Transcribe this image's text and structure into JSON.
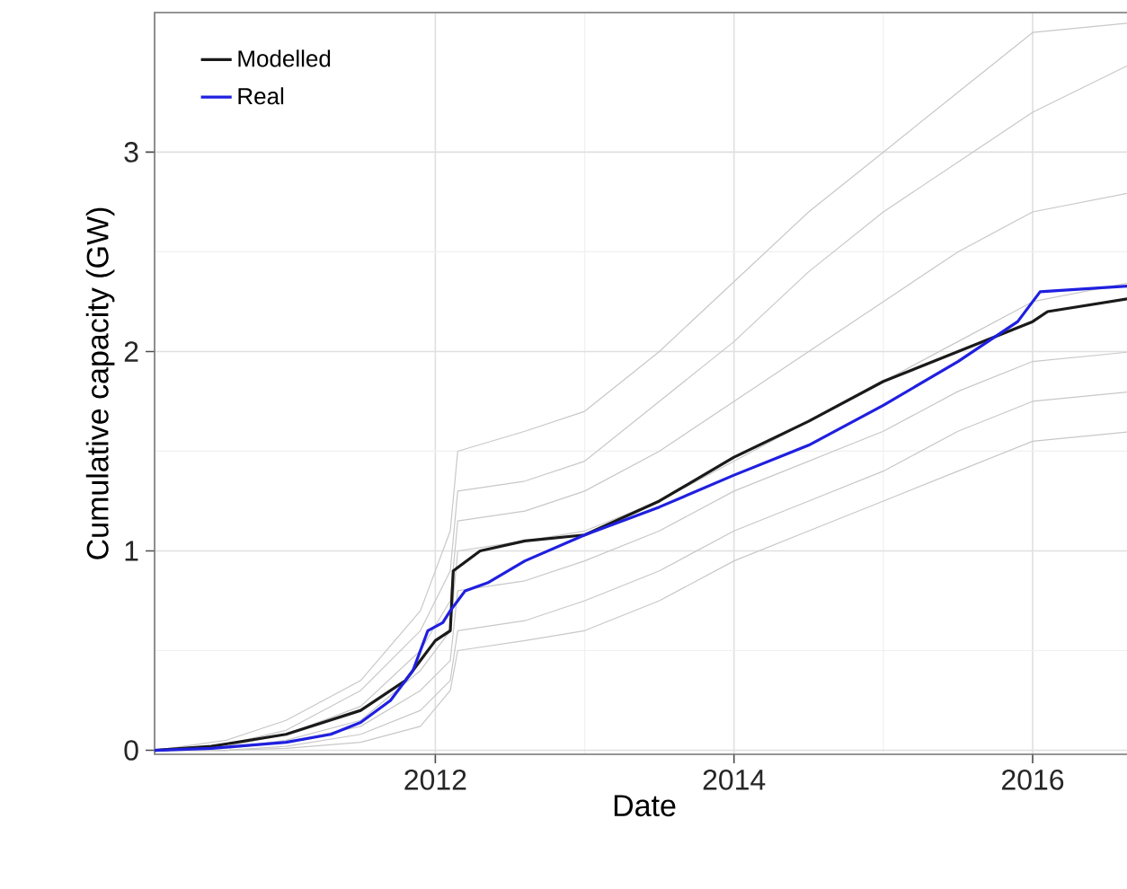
{
  "chart_data": {
    "type": "line",
    "xlabel": "Date",
    "ylabel": "Cumulative capacity (GW)",
    "xlim": [
      2010.12,
      2016.68
    ],
    "ylim": [
      -0.02,
      3.7
    ],
    "xticks": [
      2012,
      2014,
      2016
    ],
    "yticks": [
      0,
      1,
      2,
      3
    ],
    "grid": true,
    "legend": "top left",
    "line_style": "solid",
    "marker": "none",
    "series": [
      {
        "color": "#c8c8c8",
        "x": [
          2010.12,
          2010.6,
          2011.0,
          2011.5,
          2011.9,
          2012.1,
          2012.15,
          2012.6,
          2013.0,
          2013.5,
          2014.0,
          2014.5,
          2015.0,
          2015.5,
          2016.0,
          2016.68
        ],
        "values": [
          0,
          0.05,
          0.15,
          0.35,
          0.7,
          1.1,
          1.5,
          1.6,
          1.7,
          2.0,
          2.35,
          2.7,
          3.0,
          3.3,
          3.6,
          3.65
        ]
      },
      {
        "color": "#c8c8c8",
        "x": [
          2010.12,
          2010.6,
          2011.0,
          2011.5,
          2011.9,
          2012.1,
          2012.15,
          2012.6,
          2013.0,
          2013.5,
          2014.0,
          2014.5,
          2015.0,
          2015.5,
          2016.0,
          2016.68
        ],
        "values": [
          0,
          0.03,
          0.1,
          0.3,
          0.6,
          0.9,
          1.3,
          1.35,
          1.45,
          1.75,
          2.05,
          2.4,
          2.7,
          2.95,
          3.2,
          3.45
        ]
      },
      {
        "color": "#c8c8c8",
        "x": [
          2010.12,
          2010.6,
          2011.0,
          2011.5,
          2011.9,
          2012.1,
          2012.15,
          2012.6,
          2013.0,
          2013.5,
          2014.0,
          2014.5,
          2015.0,
          2015.5,
          2016.0,
          2016.68
        ],
        "values": [
          0,
          0.02,
          0.08,
          0.22,
          0.5,
          0.75,
          1.15,
          1.2,
          1.3,
          1.5,
          1.75,
          2.0,
          2.25,
          2.5,
          2.7,
          2.8
        ]
      },
      {
        "color": "#c8c8c8",
        "x": [
          2010.12,
          2010.6,
          2011.0,
          2011.5,
          2011.9,
          2012.1,
          2012.15,
          2012.6,
          2013.0,
          2013.5,
          2014.0,
          2014.5,
          2015.0,
          2015.5,
          2016.0,
          2016.68
        ],
        "values": [
          0,
          0.01,
          0.05,
          0.15,
          0.4,
          0.6,
          1.0,
          1.05,
          1.1,
          1.25,
          1.45,
          1.65,
          1.85,
          2.05,
          2.25,
          2.35
        ]
      },
      {
        "color": "#c8c8c8",
        "x": [
          2010.12,
          2010.6,
          2011.0,
          2011.5,
          2011.9,
          2012.1,
          2012.15,
          2012.6,
          2013.0,
          2013.5,
          2014.0,
          2014.5,
          2015.0,
          2015.5,
          2016.0,
          2016.68
        ],
        "values": [
          0,
          0.01,
          0.04,
          0.12,
          0.3,
          0.45,
          0.8,
          0.85,
          0.95,
          1.1,
          1.3,
          1.45,
          1.6,
          1.8,
          1.95,
          2.0
        ]
      },
      {
        "color": "#c8c8c8",
        "x": [
          2010.12,
          2010.6,
          2011.0,
          2011.5,
          2011.9,
          2012.1,
          2012.15,
          2012.6,
          2013.0,
          2013.5,
          2014.0,
          2014.5,
          2015.0,
          2015.5,
          2016.0,
          2016.68
        ],
        "values": [
          0,
          0,
          0.02,
          0.08,
          0.2,
          0.35,
          0.6,
          0.65,
          0.75,
          0.9,
          1.1,
          1.25,
          1.4,
          1.6,
          1.75,
          1.8
        ]
      },
      {
        "color": "#c8c8c8",
        "x": [
          2010.12,
          2010.6,
          2011.0,
          2011.5,
          2011.9,
          2012.1,
          2012.15,
          2012.6,
          2013.0,
          2013.5,
          2014.0,
          2014.5,
          2015.0,
          2015.5,
          2016.0,
          2016.68
        ],
        "values": [
          0,
          0,
          0.01,
          0.04,
          0.12,
          0.3,
          0.5,
          0.55,
          0.6,
          0.75,
          0.95,
          1.1,
          1.25,
          1.4,
          1.55,
          1.6
        ]
      },
      {
        "name": "Modelled",
        "color": "#1a1a1a",
        "x": [
          2010.12,
          2010.5,
          2011.0,
          2011.5,
          2011.8,
          2012.0,
          2012.1,
          2012.12,
          2012.3,
          2012.6,
          2013.0,
          2013.5,
          2014.0,
          2014.5,
          2015.0,
          2015.5,
          2016.0,
          2016.1,
          2016.68
        ],
        "values": [
          0,
          0.02,
          0.08,
          0.2,
          0.35,
          0.55,
          0.6,
          0.9,
          1.0,
          1.05,
          1.08,
          1.25,
          1.47,
          1.65,
          1.85,
          2.0,
          2.15,
          2.2,
          2.27
        ]
      },
      {
        "name": "Real",
        "color": "#1f1fe0",
        "x": [
          2010.12,
          2010.5,
          2011.0,
          2011.3,
          2011.5,
          2011.7,
          2011.85,
          2011.95,
          2012.05,
          2012.1,
          2012.2,
          2012.35,
          2012.6,
          2013.0,
          2013.5,
          2014.0,
          2014.5,
          2015.0,
          2015.5,
          2015.9,
          2016.05,
          2016.68
        ],
        "values": [
          0,
          0.01,
          0.04,
          0.08,
          0.14,
          0.25,
          0.4,
          0.6,
          0.64,
          0.7,
          0.8,
          0.84,
          0.95,
          1.08,
          1.22,
          1.38,
          1.53,
          1.73,
          1.95,
          2.15,
          2.3,
          2.33
        ]
      }
    ]
  }
}
